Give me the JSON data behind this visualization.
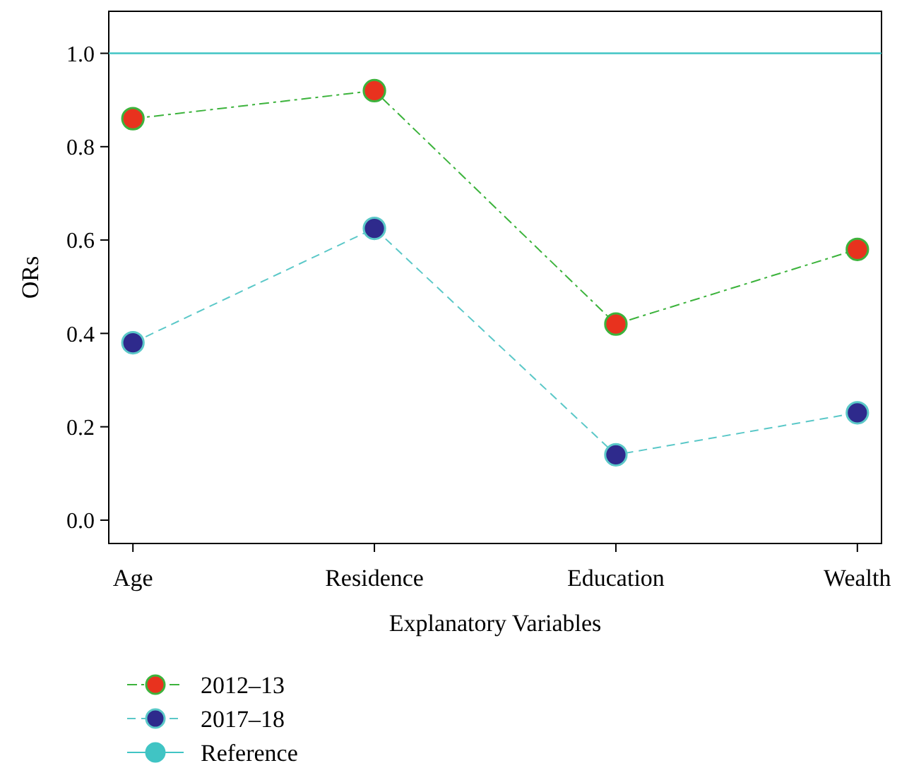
{
  "chart_data": {
    "type": "line",
    "xlabel": "Explanatory Variables",
    "ylabel": "ORs",
    "categories": [
      "Age",
      "Residence",
      "Education",
      "Wealth"
    ],
    "series": [
      {
        "name": "2012–13",
        "color": "#e8321e",
        "line_style": "dashed",
        "values": [
          0.86,
          0.92,
          0.42,
          0.58
        ]
      },
      {
        "name": "2017–18",
        "color": "#2e2a8c",
        "line_style": "dashed",
        "values": [
          0.38,
          0.625,
          0.14,
          0.23
        ]
      }
    ],
    "ylim": [
      -0.05,
      1.09
    ],
    "yticks": [
      {
        "value": 0,
        "label": "0.0"
      },
      0.2,
      0.4,
      0.6,
      0.8,
      {
        "value": 1,
        "label": "1.0"
      }
    ],
    "ref_lines": [
      {
        "axis": "y",
        "value": 1,
        "label": "Reference",
        "color": "#40c4c4"
      }
    ],
    "marker": "circle",
    "legend": "bottom left",
    "grid": false
  }
}
